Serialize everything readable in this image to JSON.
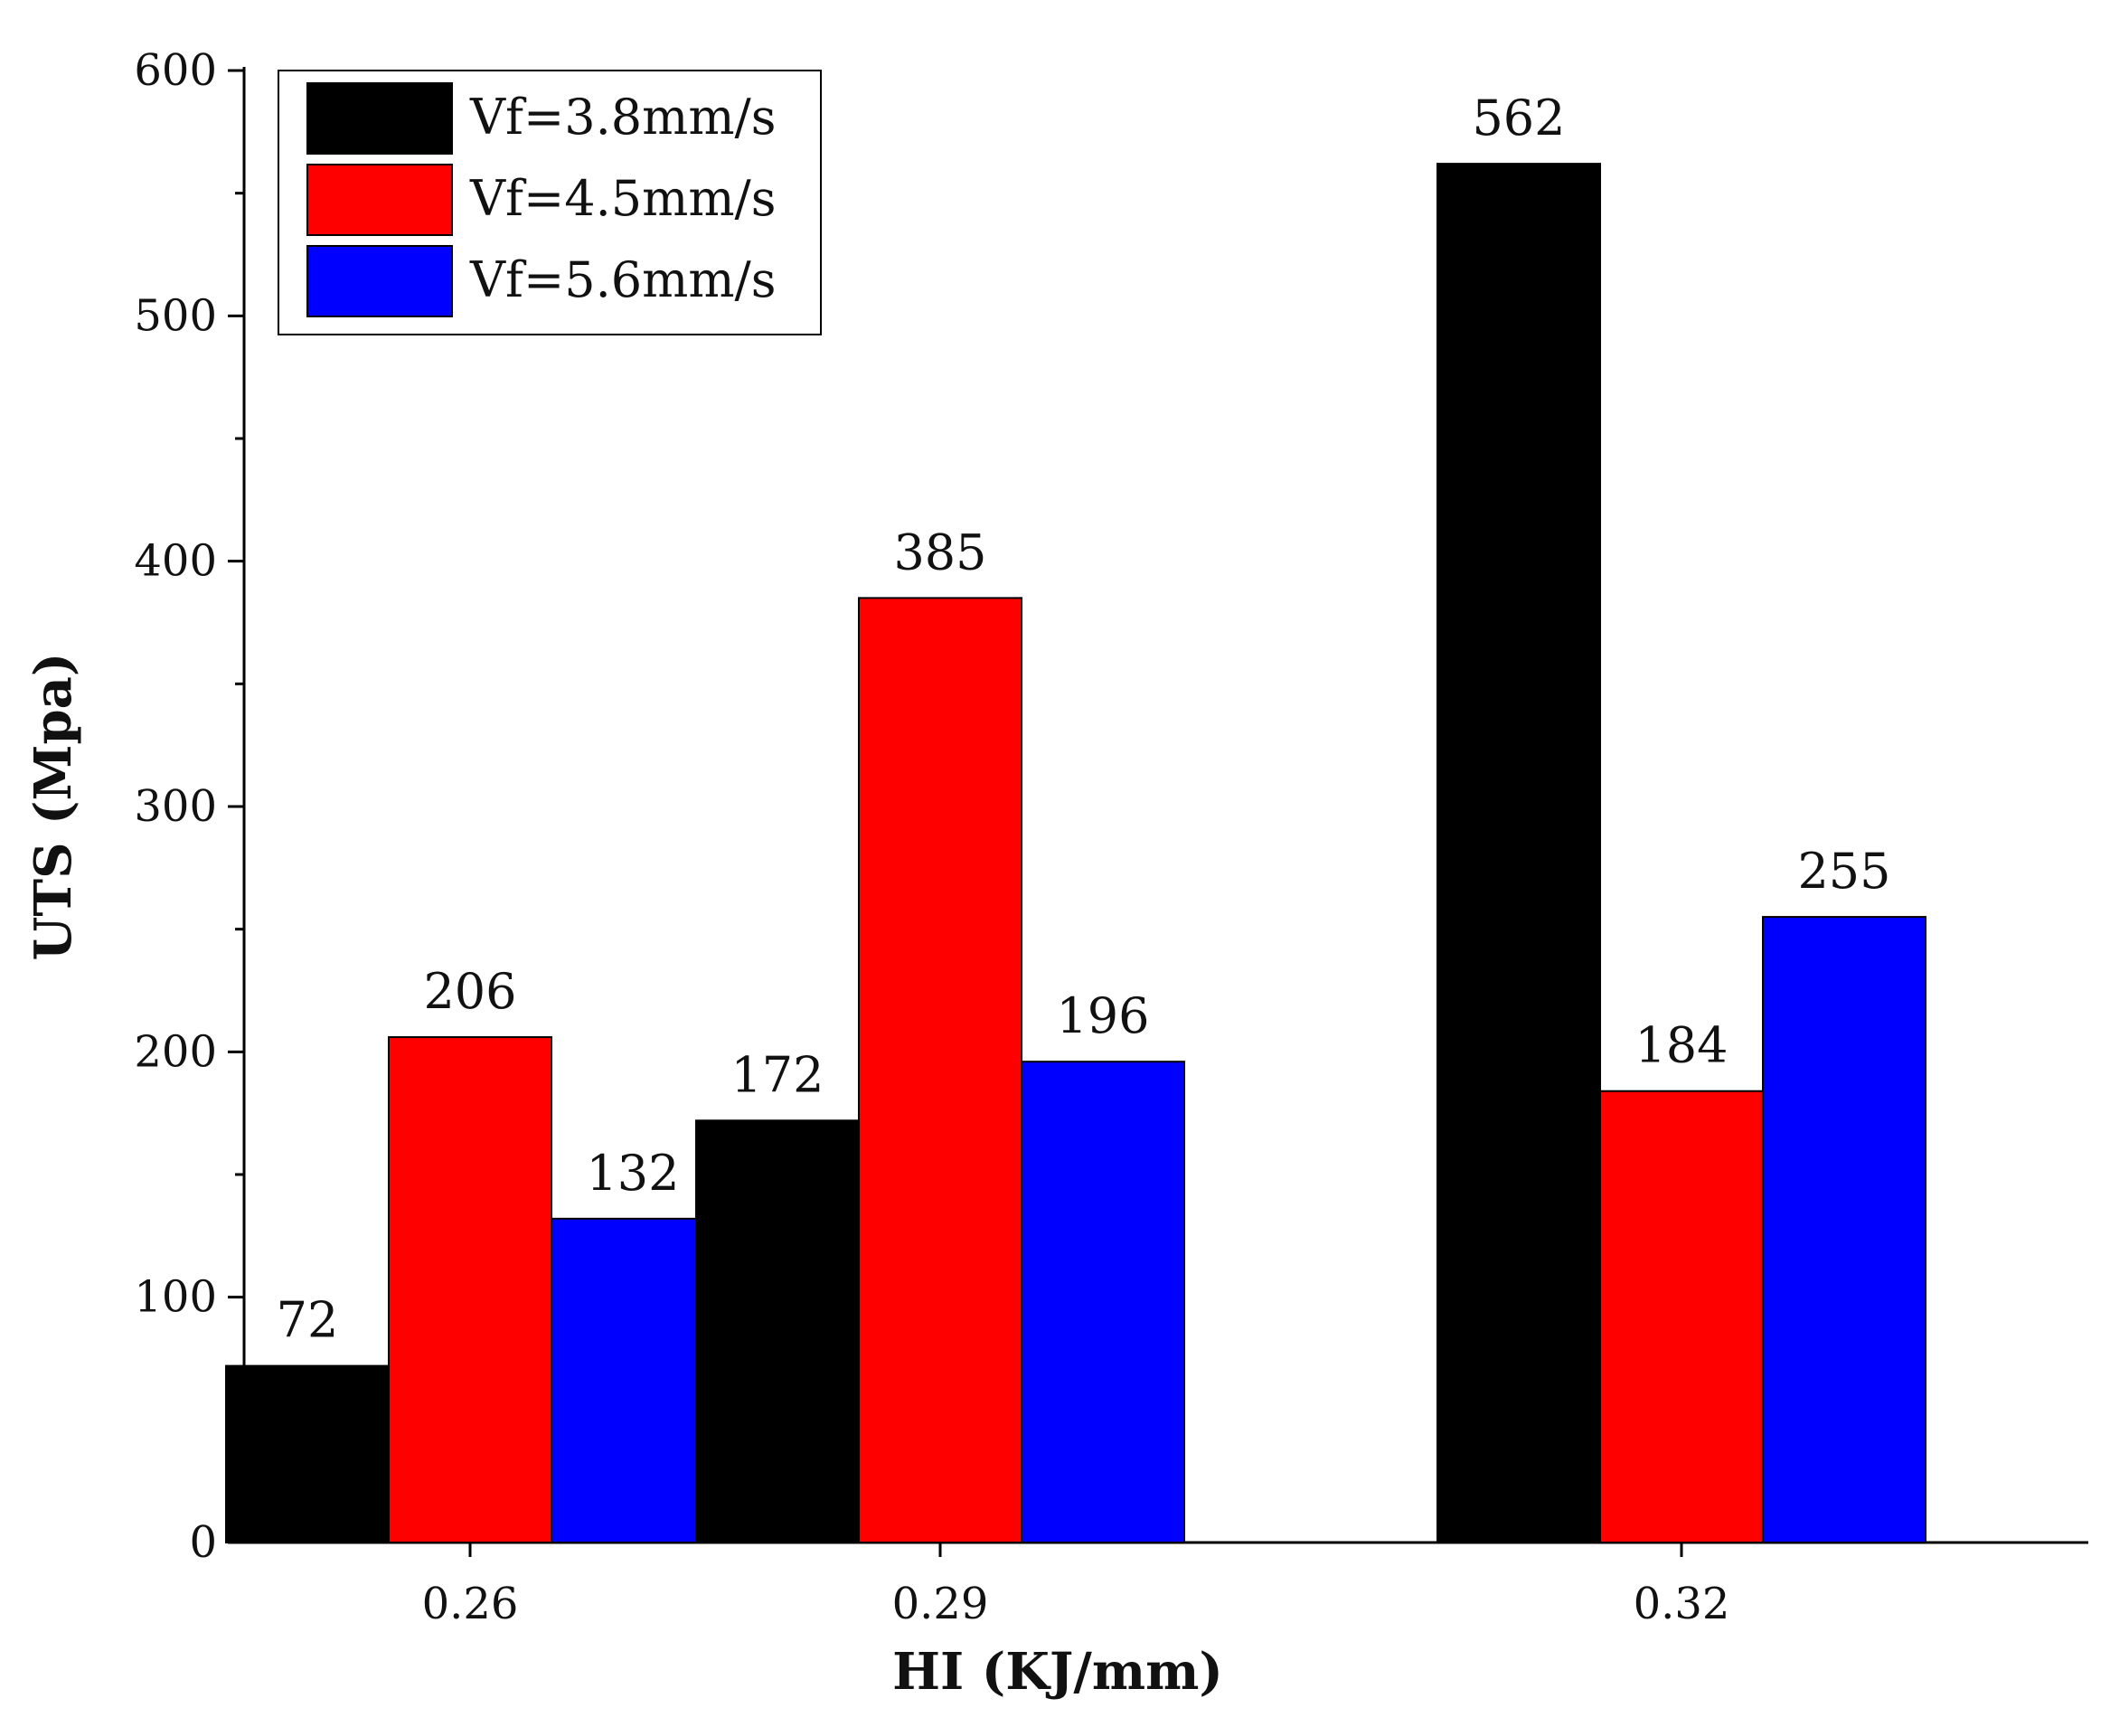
{
  "chart_data": {
    "type": "bar",
    "xlabel": "HI (KJ/mm)",
    "ylabel": "UTS (Mpa)",
    "categories": [
      "0.26",
      "0.29",
      "0.32"
    ],
    "series": [
      {
        "name": "Vf=3.8mm/s",
        "color": "#000000",
        "values": [
          72,
          172,
          562
        ]
      },
      {
        "name": "Vf=4.5mm/s",
        "color": "#ff0000",
        "values": [
          206,
          385,
          184
        ]
      },
      {
        "name": "Vf=5.6mm/s",
        "color": "#0000ff",
        "values": [
          132,
          196,
          255
        ]
      }
    ],
    "ylim": [
      0,
      600
    ],
    "yticks": [
      0,
      100,
      200,
      300,
      400,
      500,
      600
    ],
    "grid": false,
    "legend_position": "top-left"
  }
}
